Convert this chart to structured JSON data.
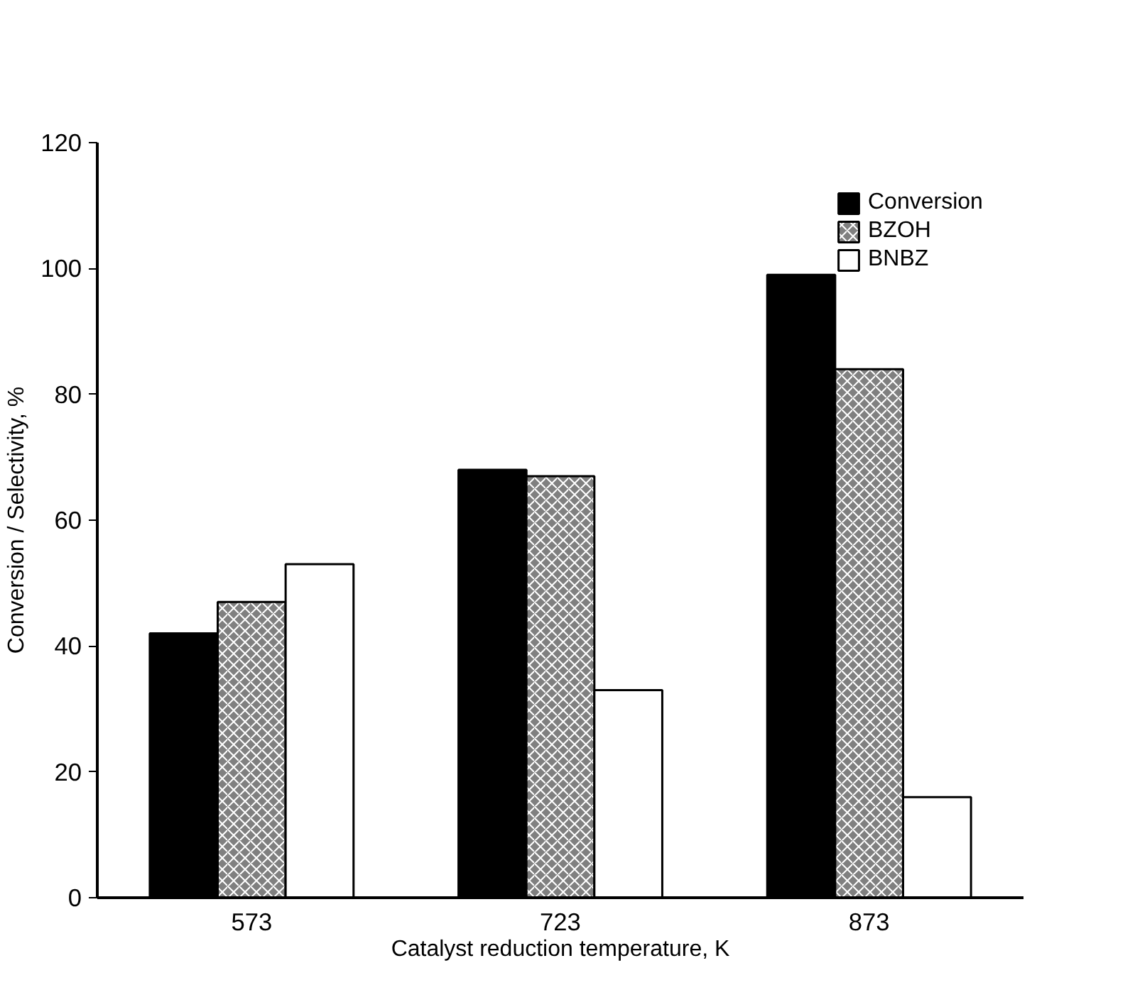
{
  "chart_data": {
    "type": "bar",
    "xlabel": "Catalyst reduction temperature, K",
    "ylabel": "Conversion / Selectivity, %",
    "categories": [
      "573",
      "723",
      "873"
    ],
    "series": [
      {
        "name": "Conversion",
        "color": "#000000",
        "values": [
          42,
          68,
          99
        ]
      },
      {
        "name": "BZOH",
        "color": "#808080",
        "values": [
          47,
          67,
          84
        ]
      },
      {
        "name": "BNBZ",
        "color": "#ffffff",
        "values": [
          53,
          33,
          16
        ]
      }
    ],
    "ylim": [
      0,
      120
    ],
    "yticks": [
      0,
      20,
      40,
      60,
      80,
      100,
      120
    ],
    "grid": false,
    "legend": "top right"
  }
}
